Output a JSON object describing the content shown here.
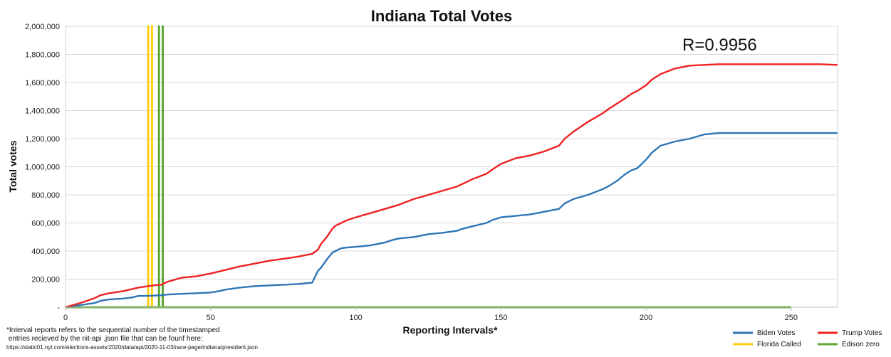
{
  "chart_data": {
    "type": "line",
    "title": "Indiana Total Votes",
    "xlabel": "Reporting Intervals*",
    "ylabel": "Total votes",
    "xlim": [
      0,
      266
    ],
    "ylim": [
      0,
      2000000
    ],
    "xticks": [
      {
        "value": 0,
        "label": "0"
      },
      {
        "value": 50,
        "label": "50"
      },
      {
        "value": 100,
        "label": "100"
      },
      {
        "value": 150,
        "label": "150"
      },
      {
        "value": 200,
        "label": "200"
      },
      {
        "value": 250,
        "label": "250"
      }
    ],
    "yticks": [
      {
        "value": 0,
        "label": "-"
      },
      {
        "value": 200000,
        "label": "200,000"
      },
      {
        "value": 400000,
        "label": "400,000"
      },
      {
        "value": 600000,
        "label": "600,000"
      },
      {
        "value": 800000,
        "label": "800,000"
      },
      {
        "value": 1000000,
        "label": "1,000,000"
      },
      {
        "value": 1200000,
        "label": "1,200,000"
      },
      {
        "value": 1400000,
        "label": "1,400,000"
      },
      {
        "value": 1600000,
        "label": "1,600,000"
      },
      {
        "value": 1800000,
        "label": "1,800,000"
      },
      {
        "value": 2000000,
        "label": "2,000,000"
      }
    ],
    "grid": true,
    "annotation": "R=0.9956",
    "footnote": [
      "*Interval reports refers to the sequential number of the timestamped",
      " entries recieved by the nit-api .json file that can be founf here:",
      "https://static01.nyt.com/elections-assets/2020/data/api/2020-11-03/race-page/indiana/president.json"
    ],
    "legend_position": "bottom-right",
    "series": [
      {
        "name": "Biden Votes",
        "color": "#2e75b6",
        "x": [
          0,
          5,
          10,
          12,
          15,
          20,
          23,
          25,
          30,
          33,
          35,
          40,
          45,
          50,
          53,
          55,
          60,
          65,
          70,
          75,
          80,
          85,
          87,
          88,
          90,
          92,
          93,
          95,
          97,
          100,
          105,
          110,
          112,
          115,
          120,
          125,
          130,
          135,
          137,
          140,
          145,
          147,
          150,
          155,
          160,
          165,
          170,
          172,
          175,
          180,
          185,
          187,
          190,
          193,
          195,
          197,
          200,
          202,
          205,
          210,
          215,
          220,
          225,
          230,
          240,
          250,
          260,
          266
        ],
        "values": [
          0,
          15000,
          30000,
          45000,
          55000,
          62000,
          70000,
          80000,
          82000,
          85000,
          90000,
          95000,
          100000,
          105000,
          115000,
          125000,
          140000,
          150000,
          155000,
          160000,
          165000,
          175000,
          260000,
          280000,
          340000,
          390000,
          400000,
          420000,
          425000,
          430000,
          440000,
          460000,
          475000,
          490000,
          500000,
          520000,
          530000,
          545000,
          560000,
          575000,
          600000,
          620000,
          640000,
          650000,
          660000,
          680000,
          700000,
          740000,
          770000,
          800000,
          840000,
          860000,
          900000,
          950000,
          975000,
          990000,
          1050000,
          1100000,
          1150000,
          1180000,
          1200000,
          1230000,
          1240000,
          1240000,
          1240000,
          1240000,
          1240000,
          1240000
        ]
      },
      {
        "name": "Trump Votes",
        "color": "#ee2222",
        "x": [
          0,
          5,
          8,
          10,
          12,
          15,
          20,
          25,
          30,
          33,
          35,
          40,
          45,
          50,
          55,
          60,
          65,
          70,
          75,
          80,
          85,
          87,
          88,
          90,
          92,
          93,
          95,
          97,
          100,
          105,
          110,
          115,
          120,
          125,
          130,
          135,
          137,
          140,
          145,
          147,
          150,
          155,
          160,
          165,
          170,
          172,
          175,
          180,
          185,
          187,
          190,
          193,
          195,
          197,
          200,
          202,
          205,
          210,
          215,
          220,
          225,
          230,
          240,
          250,
          260,
          266
        ],
        "values": [
          0,
          30000,
          50000,
          65000,
          85000,
          100000,
          115000,
          140000,
          155000,
          160000,
          180000,
          210000,
          220000,
          240000,
          265000,
          290000,
          310000,
          330000,
          345000,
          360000,
          380000,
          410000,
          450000,
          500000,
          560000,
          580000,
          600000,
          620000,
          640000,
          670000,
          700000,
          730000,
          770000,
          800000,
          830000,
          860000,
          880000,
          910000,
          950000,
          980000,
          1020000,
          1060000,
          1080000,
          1110000,
          1150000,
          1200000,
          1250000,
          1320000,
          1380000,
          1410000,
          1450000,
          1490000,
          1520000,
          1540000,
          1580000,
          1620000,
          1660000,
          1700000,
          1720000,
          1725000,
          1730000,
          1730000,
          1730000,
          1730000,
          1730000,
          1725000
        ]
      },
      {
        "name": "Florida Called",
        "color": "#ffcc11",
        "x": [
          28.5,
          28.5,
          28.5,
          29.8,
          29.8,
          29.8
        ],
        "values": [
          0,
          2000000,
          0,
          0,
          2000000,
          0
        ]
      },
      {
        "name": "Edison zero",
        "color": "#5ca832",
        "x": [
          0,
          32.2,
          32.2,
          32.2,
          33.5,
          33.5,
          33.5,
          250
        ],
        "values": [
          0,
          0,
          2000000,
          0,
          0,
          2000000,
          0,
          0
        ]
      }
    ]
  }
}
